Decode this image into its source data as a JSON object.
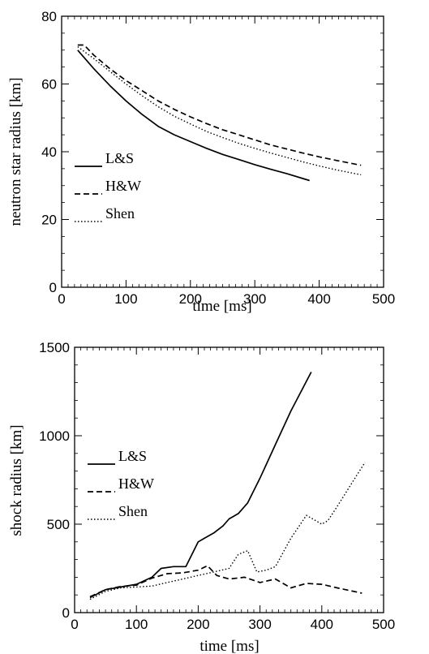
{
  "chart_data": [
    {
      "type": "line",
      "title": "",
      "xlabel": "time [ms]",
      "ylabel": "neutron star radius [km]",
      "xlim": [
        0,
        500
      ],
      "ylim": [
        0,
        80
      ],
      "xticks": [
        0,
        100,
        200,
        300,
        400,
        500
      ],
      "yticks": [
        0,
        20,
        40,
        60,
        80
      ],
      "legend": "left-middle",
      "series": [
        {
          "name": "L&S",
          "style": "solid",
          "color": "#000000",
          "x": [
            25,
            50,
            75,
            100,
            125,
            150,
            175,
            200,
            225,
            250,
            275,
            300,
            325,
            350,
            385
          ],
          "y": [
            70,
            64.5,
            59.5,
            55,
            51,
            47.5,
            45,
            43,
            41,
            39.2,
            37.7,
            36.2,
            34.8,
            33.5,
            31.5
          ]
        },
        {
          "name": "H&W",
          "style": "dashed",
          "color": "#000000",
          "x": [
            25,
            35,
            50,
            75,
            100,
            125,
            150,
            175,
            200,
            225,
            250,
            275,
            300,
            325,
            350,
            375,
            400,
            425,
            465
          ],
          "y": [
            71.5,
            71.5,
            68.5,
            64.5,
            61,
            58,
            55,
            52.5,
            50.3,
            48.3,
            46.5,
            45,
            43.5,
            42,
            40.8,
            39.6,
            38.5,
            37.5,
            36
          ]
        },
        {
          "name": "Shen",
          "style": "dotted",
          "color": "#000000",
          "x": [
            25,
            50,
            75,
            100,
            125,
            150,
            175,
            200,
            225,
            250,
            275,
            300,
            325,
            350,
            375,
            400,
            425,
            465
          ],
          "y": [
            71,
            67.5,
            63.7,
            60,
            56.5,
            53.3,
            50.5,
            48.2,
            46,
            44.2,
            42.5,
            41,
            39.6,
            38.3,
            37,
            35.8,
            34.7,
            33.2
          ]
        }
      ]
    },
    {
      "type": "line",
      "title": "",
      "xlabel": "time [ms]",
      "ylabel": "shock radius [km]",
      "xlim": [
        0,
        500
      ],
      "ylim": [
        0,
        1500
      ],
      "xticks": [
        0,
        100,
        200,
        300,
        400,
        500
      ],
      "yticks": [
        0,
        500,
        1000,
        1500
      ],
      "legend": "left-middle",
      "series": [
        {
          "name": "L&S",
          "style": "solid",
          "color": "#000000",
          "x": [
            25,
            50,
            75,
            100,
            125,
            140,
            160,
            180,
            200,
            210,
            225,
            240,
            250,
            265,
            280,
            300,
            325,
            350,
            383
          ],
          "y": [
            85,
            130,
            145,
            160,
            200,
            250,
            260,
            260,
            400,
            420,
            450,
            490,
            530,
            560,
            620,
            760,
            950,
            1140,
            1360
          ]
        },
        {
          "name": "H&W",
          "style": "dashed",
          "color": "#000000",
          "x": [
            25,
            50,
            75,
            100,
            125,
            150,
            175,
            200,
            215,
            230,
            250,
            275,
            300,
            325,
            350,
            375,
            400,
            425,
            465
          ],
          "y": [
            90,
            130,
            148,
            155,
            195,
            220,
            225,
            240,
            265,
            210,
            190,
            200,
            170,
            190,
            140,
            165,
            160,
            140,
            110
          ]
        },
        {
          "name": "Shen",
          "style": "dotted",
          "color": "#000000",
          "x": [
            25,
            50,
            75,
            100,
            125,
            150,
            175,
            200,
            225,
            250,
            265,
            280,
            295,
            310,
            325,
            350,
            375,
            390,
            400,
            410,
            425,
            450,
            470
          ],
          "y": [
            75,
            120,
            140,
            145,
            150,
            170,
            190,
            210,
            230,
            250,
            330,
            350,
            230,
            240,
            260,
            420,
            550,
            520,
            500,
            520,
            600,
            740,
            850
          ]
        }
      ]
    }
  ]
}
